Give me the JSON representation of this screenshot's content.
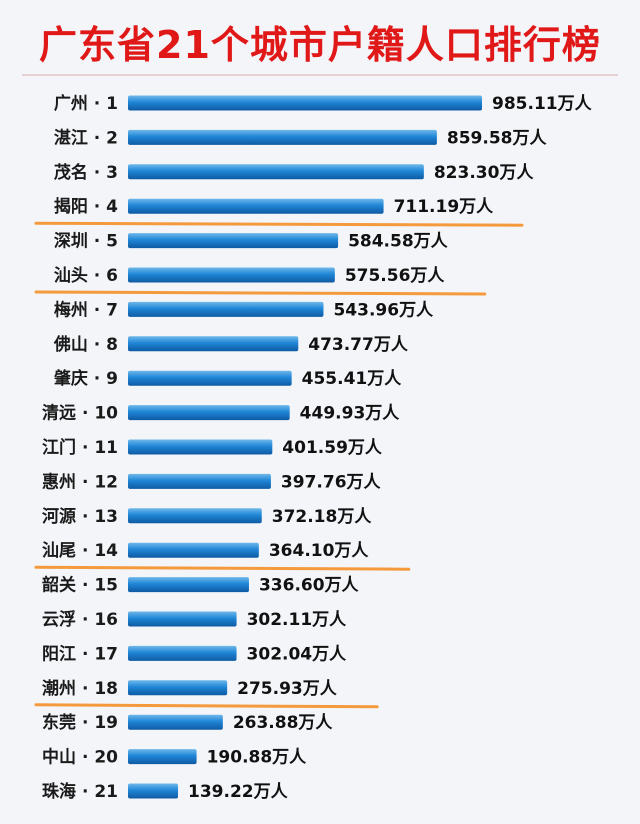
{
  "colors": {
    "title": "#e01818",
    "bar_top": "#6fb8ea",
    "bar_mid": "#1f86d6",
    "bar_bottom": "#0f5aa3",
    "highlight": "#f59a3c"
  },
  "chart_data": {
    "type": "bar",
    "orientation": "horizontal",
    "title": "广东省21个城市户籍人口排行榜",
    "unit": "万人",
    "categories": [
      "广州 · 1",
      "湛江 · 2",
      "茂名 · 3",
      "揭阳 · 4",
      "深圳 · 5",
      "汕头 · 6",
      "梅州 · 7",
      "佛山 · 8",
      "肇庆 · 9",
      "清远 · 10",
      "江门 · 11",
      "惠州 · 12",
      "河源 · 13",
      "汕尾 · 14",
      "韶关 · 15",
      "云浮 · 16",
      "阳江 · 17",
      "潮州 · 18",
      "东莞 · 19",
      "中山 · 20",
      "珠海 · 21"
    ],
    "values": [
      985.11,
      859.58,
      823.3,
      711.19,
      584.58,
      575.56,
      543.96,
      473.77,
      455.41,
      449.93,
      401.59,
      397.76,
      372.18,
      364.1,
      336.6,
      302.11,
      302.04,
      275.93,
      263.88,
      190.88,
      139.22
    ],
    "value_labels": [
      "985.11万人",
      "859.58万人",
      "823.30万人",
      "711.19万人",
      "584.58万人",
      "575.56万人",
      "543.96万人",
      "473.77万人",
      "455.41万人",
      "449.93万人",
      "401.59万人",
      "397.76万人",
      "372.18万人",
      "364.10万人",
      "336.60万人",
      "302.11万人",
      "302.04万人",
      "275.93万人",
      "263.88万人",
      "190.88万人",
      "139.22万人"
    ],
    "underlined_categories": [
      "揭阳 · 4",
      "汕头 · 6",
      "汕尾 · 14",
      "潮州 · 18"
    ],
    "xlim": [
      0,
      1000
    ],
    "grid": false,
    "legend": "none"
  }
}
